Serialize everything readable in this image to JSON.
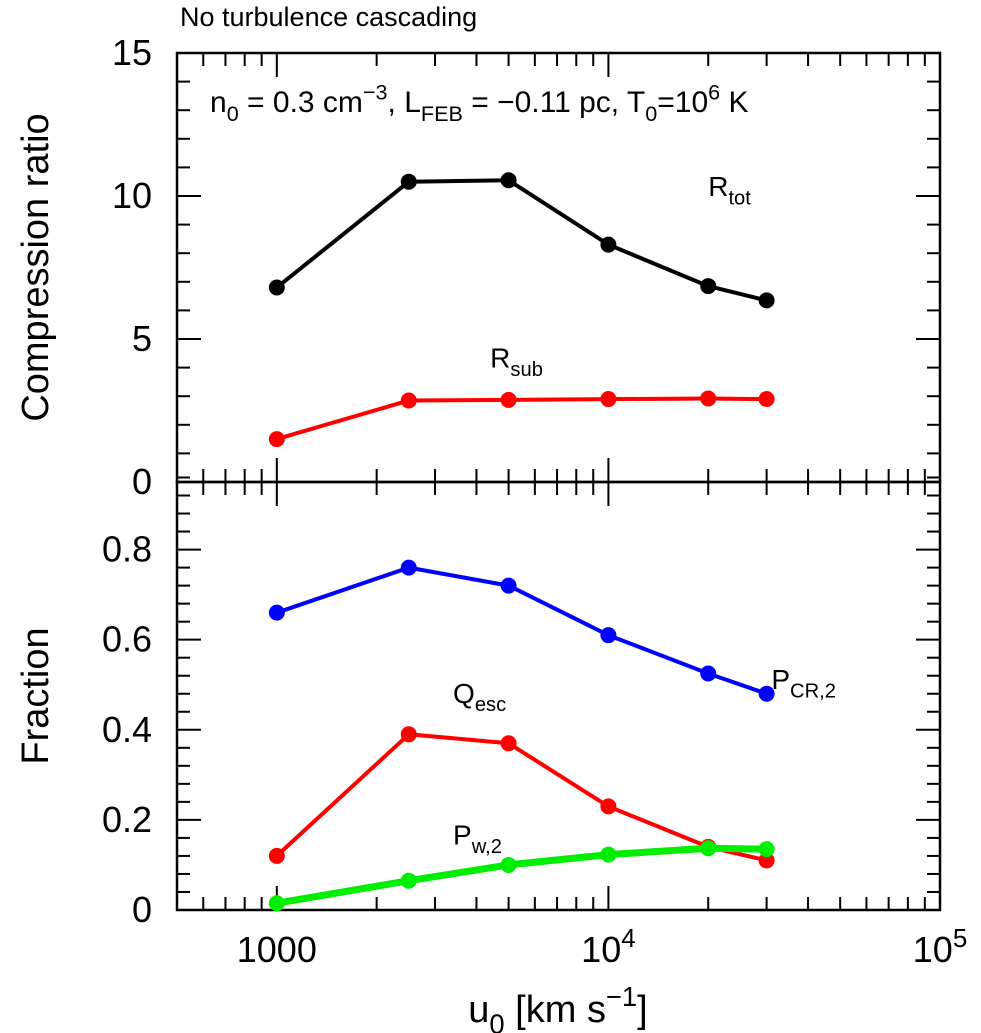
{
  "header": {
    "caption": "No turbulence cascading"
  },
  "annotation": {
    "parts": [
      {
        "text": "n",
        "kind": "base"
      },
      {
        "text": "0",
        "kind": "sub"
      },
      {
        "text": " = 0.3 cm",
        "kind": "base"
      },
      {
        "text": "−3",
        "kind": "sup"
      },
      {
        "text": ", L",
        "kind": "base"
      },
      {
        "text": "FEB",
        "kind": "sub"
      },
      {
        "text": " = −0.11 pc, T",
        "kind": "base"
      },
      {
        "text": "0",
        "kind": "sub"
      },
      {
        "text": "=10",
        "kind": "base"
      },
      {
        "text": "6",
        "kind": "sup"
      },
      {
        "text": " K",
        "kind": "base"
      }
    ]
  },
  "x_axis": {
    "title_parts": [
      {
        "text": "u",
        "kind": "base"
      },
      {
        "text": "0",
        "kind": "sub"
      },
      {
        "text": " [km s",
        "kind": "base"
      },
      {
        "text": "−1",
        "kind": "sup"
      },
      {
        "text": "]",
        "kind": "base"
      }
    ],
    "tick_labels": [
      {
        "value": 1000,
        "parts": [
          {
            "text": "1000",
            "kind": "base"
          }
        ]
      },
      {
        "value": 10000,
        "parts": [
          {
            "text": "10",
            "kind": "base"
          },
          {
            "text": "4",
            "kind": "sup"
          }
        ]
      },
      {
        "value": 100000,
        "parts": [
          {
            "text": "10",
            "kind": "base"
          },
          {
            "text": "5",
            "kind": "sup"
          }
        ]
      }
    ]
  },
  "chart_data": [
    {
      "type": "line",
      "panel": "top",
      "ylabel": "Compression ratio",
      "xscale": "log",
      "xlim": [
        500,
        100000
      ],
      "ylim": [
        0,
        15
      ],
      "yticks": [
        "0",
        "5",
        "10",
        "15"
      ],
      "x": [
        1000,
        2500,
        5000,
        10000,
        20000,
        30000
      ],
      "series": [
        {
          "name": "R_tot",
          "label_parts": [
            {
              "text": "R",
              "kind": "base"
            },
            {
              "text": "tot",
              "kind": "sub"
            }
          ],
          "label_at": [
            20000,
            10.0
          ],
          "color": "#000000",
          "width": 4,
          "values": [
            6.8,
            10.5,
            10.55,
            8.3,
            6.85,
            6.35
          ]
        },
        {
          "name": "R_sub",
          "label_parts": [
            {
              "text": "R",
              "kind": "base"
            },
            {
              "text": "sub",
              "kind": "sub"
            }
          ],
          "label_at": [
            4400,
            4.0
          ],
          "color": "#ff0000",
          "width": 4,
          "values": [
            1.5,
            2.85,
            2.87,
            2.9,
            2.92,
            2.9
          ]
        }
      ]
    },
    {
      "type": "line",
      "panel": "bottom",
      "ylabel": "Fraction",
      "xscale": "log",
      "xlim": [
        500,
        100000
      ],
      "ylim": [
        0,
        0.95
      ],
      "yticks": [
        "0",
        "0.2",
        "0.4",
        "0.6",
        "0.8"
      ],
      "x": [
        1000,
        2500,
        5000,
        10000,
        20000,
        30000
      ],
      "series": [
        {
          "name": "P_CR,2",
          "label_parts": [
            {
              "text": "P",
              "kind": "base"
            },
            {
              "text": "CR,2",
              "kind": "sub"
            }
          ],
          "label_at": [
            31000,
            0.49
          ],
          "color": "#0000ff",
          "width": 4,
          "values": [
            0.66,
            0.76,
            0.72,
            0.61,
            0.525,
            0.48
          ]
        },
        {
          "name": "Q_esc",
          "label_parts": [
            {
              "text": "Q",
              "kind": "base"
            },
            {
              "text": "esc",
              "kind": "sub"
            }
          ],
          "label_at": [
            3400,
            0.46
          ],
          "color": "#ff0000",
          "width": 4,
          "values": [
            0.12,
            0.39,
            0.37,
            0.23,
            0.14,
            0.11
          ]
        },
        {
          "name": "P_w,2",
          "label_parts": [
            {
              "text": "P",
              "kind": "base"
            },
            {
              "text": "w,2",
              "kind": "sub"
            }
          ],
          "label_at": [
            3400,
            0.145
          ],
          "color": "#00ee00",
          "width": 7,
          "values": [
            0.015,
            0.065,
            0.1,
            0.123,
            0.137,
            0.135
          ]
        }
      ]
    }
  ]
}
